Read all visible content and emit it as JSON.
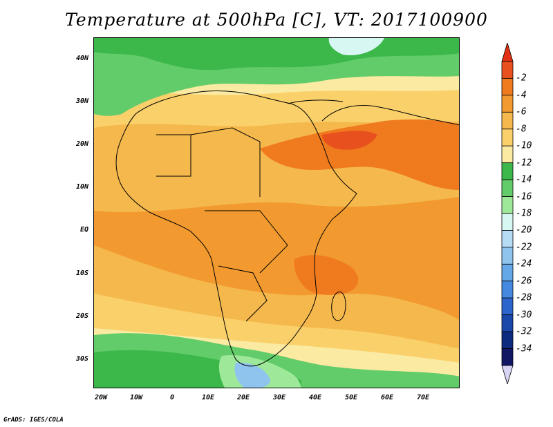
{
  "title": "Temperature at 500hPa [C], VT: 2017100900",
  "credit": "GrADS: IGES/COLA",
  "map": {
    "variable": "Temperature at 500hPa",
    "units": "C",
    "valid_time": "2017100900",
    "lat_labels": [
      "40N",
      "30N",
      "20N",
      "10N",
      "EQ",
      "10S",
      "20S",
      "30S"
    ],
    "lon_labels": [
      "20W",
      "10W",
      "0",
      "10E",
      "20E",
      "30E",
      "40E",
      "50E",
      "60E",
      "70E"
    ]
  },
  "colorbar": {
    "levels": [
      "-2",
      "-4",
      "-6",
      "-8",
      "-10",
      "-12",
      "-14",
      "-16",
      "-18",
      "-20",
      "-22",
      "-24",
      "-26",
      "-28",
      "-30",
      "-32",
      "-34"
    ],
    "colors": [
      "#e8501e",
      "#f07b1f",
      "#f29a2f",
      "#f5b84c",
      "#fad06a",
      "#fbeaa2",
      "#3cb84a",
      "#62cc6a",
      "#9ee89a",
      "#d7f7f2",
      "#b6dcf4",
      "#8fc4ef",
      "#65a8e8",
      "#4488e0",
      "#2c66cc",
      "#1a48aa",
      "#0c2a7e",
      "#121764"
    ],
    "top_arrow_color": "#e23014",
    "bottom_arrow_color": "#d8d4f4"
  }
}
